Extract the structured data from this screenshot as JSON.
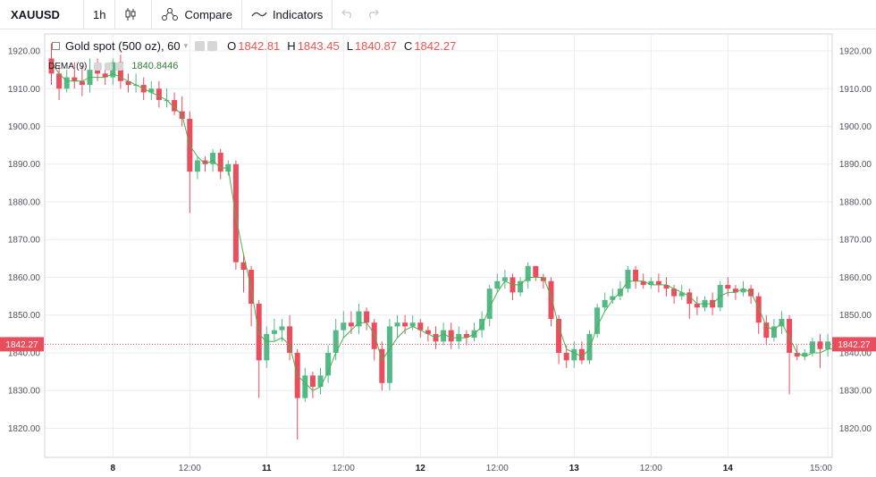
{
  "toolbar": {
    "symbol": "XAUUSD",
    "interval": "1h",
    "compare_label": "Compare",
    "indicators_label": "Indicators",
    "icons": [
      "candles-icon",
      "compare-icon",
      "indicators-icon",
      "undo-icon",
      "redo-icon"
    ]
  },
  "legend": {
    "title": "Gold spot (500 oz), 60",
    "caret": "▾",
    "open_key": "O",
    "open": "1842.81",
    "high_key": "H",
    "high": "1843.45",
    "low_key": "L",
    "low": "1840.87",
    "close_key": "C",
    "close": "1842.27"
  },
  "indicator": {
    "label": "DEMA (9)",
    "value": "1840.8446"
  },
  "price_badge": "1842.27",
  "colors": {
    "up": "#53b987",
    "down": "#eb4d5c",
    "dema": "#4caf50",
    "price_line": "#eb4d5c",
    "grid": "#e9ecf2"
  },
  "chart_data": {
    "type": "candlestick",
    "symbol": "XAUUSD",
    "interval": "60",
    "y_ticks": [
      "1820.00",
      "1830.00",
      "1840.00",
      "1850.00",
      "1860.00",
      "1870.00",
      "1880.00",
      "1890.00",
      "1900.00",
      "1910.00",
      "1920.00"
    ],
    "ylim": [
      1812.3,
      1924.5
    ],
    "x_ticks": [
      {
        "label": "8",
        "bold": true,
        "index": 8
      },
      {
        "label": "12:00",
        "bold": false,
        "index": 18
      },
      {
        "label": "11",
        "bold": true,
        "index": 28
      },
      {
        "label": "12:00",
        "bold": false,
        "index": 38
      },
      {
        "label": "12",
        "bold": true,
        "index": 48
      },
      {
        "label": "12:00",
        "bold": false,
        "index": 58
      },
      {
        "label": "13",
        "bold": true,
        "index": 68
      },
      {
        "label": "12:00",
        "bold": false,
        "index": 78
      },
      {
        "label": "14",
        "bold": true,
        "index": 88
      },
      {
        "label": "15:00",
        "bold": false,
        "index": 101
      }
    ],
    "last_price": 1842.27,
    "candles": [
      [
        1918,
        1914,
        1922,
        1911
      ],
      [
        1914,
        1910,
        1916,
        1907
      ],
      [
        1910,
        1913,
        1915,
        1909
      ],
      [
        1913,
        1912,
        1917,
        1910
      ],
      [
        1912,
        1911,
        1916,
        1908
      ],
      [
        1911,
        1915,
        1918,
        1909
      ],
      [
        1915,
        1914,
        1918,
        1912
      ],
      [
        1914,
        1913,
        1916,
        1911
      ],
      [
        1913,
        1917,
        1918,
        1911
      ],
      [
        1917,
        1912,
        1919,
        1910
      ],
      [
        1912,
        1911,
        1914,
        1909
      ],
      [
        1911,
        1911,
        1914,
        1909
      ],
      [
        1911,
        1909,
        1913,
        1907
      ],
      [
        1909,
        1910,
        1912,
        1907
      ],
      [
        1910,
        1907,
        1912,
        1905
      ],
      [
        1907,
        1907,
        1910,
        1905
      ],
      [
        1907,
        1904,
        1909,
        1903
      ],
      [
        1904,
        1902,
        1908,
        1900
      ],
      [
        1902,
        1888,
        1904,
        1877
      ],
      [
        1888,
        1891,
        1892,
        1886
      ],
      [
        1891,
        1890,
        1892,
        1888
      ],
      [
        1890,
        1893,
        1894,
        1888
      ],
      [
        1893,
        1888,
        1894,
        1886
      ],
      [
        1888,
        1890,
        1891,
        1887
      ],
      [
        1890,
        1864,
        1891,
        1862
      ],
      [
        1864,
        1862,
        1866,
        1856
      ],
      [
        1862,
        1853,
        1863,
        1847
      ],
      [
        1853,
        1838,
        1854,
        1828
      ],
      [
        1838,
        1845,
        1847,
        1836
      ],
      [
        1845,
        1846,
        1849,
        1843
      ],
      [
        1846,
        1847,
        1849,
        1843
      ],
      [
        1847,
        1840,
        1850,
        1838
      ],
      [
        1840,
        1828,
        1841,
        1817
      ],
      [
        1828,
        1834,
        1836,
        1827
      ],
      [
        1834,
        1831,
        1835,
        1828
      ],
      [
        1831,
        1834,
        1836,
        1829
      ],
      [
        1834,
        1840,
        1842,
        1832
      ],
      [
        1840,
        1846,
        1849,
        1838
      ],
      [
        1846,
        1848,
        1851,
        1844
      ],
      [
        1848,
        1847,
        1851,
        1845
      ],
      [
        1847,
        1851,
        1853,
        1845
      ],
      [
        1851,
        1848,
        1852,
        1846
      ],
      [
        1848,
        1841,
        1849,
        1838
      ],
      [
        1841,
        1832,
        1843,
        1830
      ],
      [
        1832,
        1847,
        1849,
        1830
      ],
      [
        1847,
        1848,
        1850,
        1844
      ],
      [
        1848,
        1847,
        1850,
        1845
      ],
      [
        1847,
        1848,
        1850,
        1846
      ],
      [
        1848,
        1846,
        1849,
        1844
      ],
      [
        1846,
        1845,
        1847,
        1843
      ],
      [
        1845,
        1843,
        1847,
        1841
      ],
      [
        1843,
        1846,
        1848,
        1842
      ],
      [
        1846,
        1843,
        1848,
        1841
      ],
      [
        1843,
        1845,
        1847,
        1841
      ],
      [
        1845,
        1844,
        1846,
        1842
      ],
      [
        1844,
        1846,
        1848,
        1843
      ],
      [
        1846,
        1849,
        1851,
        1844
      ],
      [
        1849,
        1857,
        1858,
        1847
      ],
      [
        1857,
        1859,
        1861,
        1856
      ],
      [
        1859,
        1860,
        1862,
        1857
      ],
      [
        1860,
        1856,
        1861,
        1854
      ],
      [
        1856,
        1859,
        1860,
        1855
      ],
      [
        1859,
        1863,
        1864,
        1857
      ],
      [
        1863,
        1860,
        1862,
        1859
      ],
      [
        1860,
        1859,
        1861,
        1857
      ],
      [
        1859,
        1849,
        1860,
        1847
      ],
      [
        1849,
        1840,
        1850,
        1837
      ],
      [
        1840,
        1838,
        1842,
        1836
      ],
      [
        1838,
        1841,
        1843,
        1836
      ],
      [
        1841,
        1838,
        1843,
        1837
      ],
      [
        1838,
        1845,
        1846,
        1837
      ],
      [
        1845,
        1852,
        1853,
        1844
      ],
      [
        1852,
        1854,
        1856,
        1851
      ],
      [
        1854,
        1855,
        1857,
        1853
      ],
      [
        1855,
        1857,
        1859,
        1854
      ],
      [
        1857,
        1862,
        1863,
        1856
      ],
      [
        1862,
        1859,
        1863,
        1857
      ],
      [
        1859,
        1858,
        1861,
        1857
      ],
      [
        1858,
        1859,
        1860,
        1857
      ],
      [
        1859,
        1858,
        1861,
        1856
      ],
      [
        1858,
        1857,
        1860,
        1855
      ],
      [
        1857,
        1855,
        1858,
        1853
      ],
      [
        1855,
        1856,
        1858,
        1854
      ],
      [
        1856,
        1853,
        1857,
        1849
      ],
      [
        1853,
        1852,
        1855,
        1850
      ],
      [
        1852,
        1854,
        1855,
        1851
      ],
      [
        1854,
        1852,
        1856,
        1850
      ],
      [
        1852,
        1858,
        1859,
        1851
      ],
      [
        1858,
        1857,
        1860,
        1855
      ],
      [
        1857,
        1856,
        1858,
        1854
      ],
      [
        1856,
        1857,
        1859,
        1855
      ],
      [
        1857,
        1855,
        1858,
        1853
      ],
      [
        1855,
        1848,
        1856,
        1845
      ],
      [
        1848,
        1844,
        1850,
        1842
      ],
      [
        1844,
        1847,
        1849,
        1843
      ],
      [
        1847,
        1849,
        1851,
        1845
      ],
      [
        1849,
        1840,
        1850,
        1829
      ],
      [
        1840,
        1839,
        1842,
        1838
      ],
      [
        1839,
        1840,
        1841,
        1838
      ],
      [
        1840,
        1843,
        1844,
        1839
      ],
      [
        1843,
        1841,
        1845,
        1836
      ],
      [
        1841,
        1843,
        1845,
        1839
      ],
      [
        1843,
        1842,
        1844,
        1841
      ]
    ],
    "dema_values": [
      1917,
      1914,
      1912,
      1912,
      1912,
      1913,
      1913,
      1913,
      1914,
      1913,
      1912,
      1911,
      1910,
      1909,
      1908,
      1907,
      1905,
      1903,
      1895,
      1892,
      1890,
      1891,
      1889,
      1889,
      1876,
      1866,
      1857,
      1845,
      1843,
      1843,
      1844,
      1842,
      1834,
      1832,
      1830,
      1831,
      1835,
      1840,
      1844,
      1846,
      1848,
      1848,
      1845,
      1838,
      1841,
      1844,
      1846,
      1847,
      1846,
      1845,
      1844,
      1845,
      1844,
      1844,
      1844,
      1845,
      1847,
      1852,
      1856,
      1859,
      1858,
      1858,
      1860,
      1860,
      1860,
      1855,
      1847,
      1841,
      1840,
      1839,
      1841,
      1847,
      1851,
      1854,
      1856,
      1859,
      1859,
      1859,
      1858,
      1858,
      1858,
      1857,
      1856,
      1855,
      1853,
      1853,
      1853,
      1855,
      1856,
      1856,
      1857,
      1856,
      1852,
      1847,
      1846,
      1848,
      1844,
      1840,
      1839,
      1840,
      1840,
      1841,
      1841
    ]
  }
}
